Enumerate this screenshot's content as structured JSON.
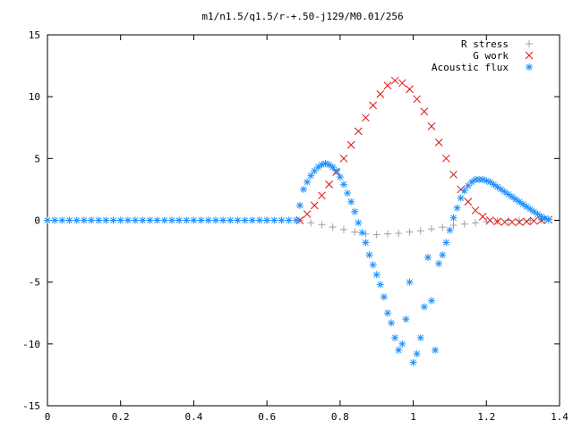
{
  "chart_data": {
    "type": "scatter",
    "title": "m1/n1.5/q1.5/r-+.50-j129/M0.01/256",
    "xlabel": "",
    "ylabel": "",
    "xlim": [
      0,
      1.4
    ],
    "ylim": [
      -15,
      15
    ],
    "x_ticks": [
      "0",
      "0.2",
      "0.4",
      "0.6",
      "0.8",
      "1",
      "1.2",
      "1.4"
    ],
    "y_ticks": [
      "15",
      "10",
      "5",
      "0",
      "-5",
      "-10",
      "-15"
    ],
    "legend_position": "top-right",
    "grid": false,
    "series": [
      {
        "name": "R stress",
        "marker": "plus",
        "color": "#a0a0a0",
        "points": [
          [
            0.69,
            0.0
          ],
          [
            0.72,
            -0.2
          ],
          [
            0.75,
            -0.35
          ],
          [
            0.78,
            -0.55
          ],
          [
            0.81,
            -0.75
          ],
          [
            0.84,
            -0.95
          ],
          [
            0.87,
            -1.1
          ],
          [
            0.9,
            -1.15
          ],
          [
            0.93,
            -1.1
          ],
          [
            0.96,
            -1.05
          ],
          [
            0.99,
            -0.95
          ],
          [
            1.02,
            -0.85
          ],
          [
            1.05,
            -0.7
          ],
          [
            1.08,
            -0.55
          ],
          [
            1.11,
            -0.4
          ],
          [
            1.14,
            -0.3
          ],
          [
            1.17,
            -0.2
          ],
          [
            1.2,
            -0.1
          ],
          [
            1.23,
            -0.05
          ],
          [
            1.26,
            0.0
          ],
          [
            1.29,
            0.0
          ],
          [
            1.32,
            0.0
          ],
          [
            1.35,
            0.05
          ],
          [
            1.37,
            0.1
          ]
        ]
      },
      {
        "name": "G work",
        "marker": "cross",
        "color": "#e01010",
        "points": [
          [
            0.69,
            0.0
          ],
          [
            0.71,
            0.5
          ],
          [
            0.73,
            1.2
          ],
          [
            0.75,
            2.0
          ],
          [
            0.77,
            2.9
          ],
          [
            0.79,
            3.9
          ],
          [
            0.81,
            5.0
          ],
          [
            0.83,
            6.1
          ],
          [
            0.85,
            7.2
          ],
          [
            0.87,
            8.3
          ],
          [
            0.89,
            9.3
          ],
          [
            0.91,
            10.2
          ],
          [
            0.93,
            10.9
          ],
          [
            0.95,
            11.3
          ],
          [
            0.97,
            11.1
          ],
          [
            0.99,
            10.6
          ],
          [
            1.01,
            9.8
          ],
          [
            1.03,
            8.8
          ],
          [
            1.05,
            7.6
          ],
          [
            1.07,
            6.3
          ],
          [
            1.09,
            5.0
          ],
          [
            1.11,
            3.7
          ],
          [
            1.13,
            2.5
          ],
          [
            1.15,
            1.5
          ],
          [
            1.17,
            0.8
          ],
          [
            1.19,
            0.3
          ],
          [
            1.21,
            0.0
          ],
          [
            1.23,
            -0.1
          ],
          [
            1.25,
            -0.15
          ],
          [
            1.27,
            -0.15
          ],
          [
            1.29,
            -0.15
          ],
          [
            1.31,
            -0.1
          ],
          [
            1.33,
            -0.05
          ],
          [
            1.35,
            0.0
          ],
          [
            1.37,
            0.05
          ]
        ]
      },
      {
        "name": "Acoustic flux",
        "marker": "star",
        "color": "#1e90ff",
        "points": [
          [
            0.0,
            0
          ],
          [
            0.02,
            0
          ],
          [
            0.04,
            0
          ],
          [
            0.06,
            0
          ],
          [
            0.08,
            0
          ],
          [
            0.1,
            0
          ],
          [
            0.12,
            0
          ],
          [
            0.14,
            0
          ],
          [
            0.16,
            0
          ],
          [
            0.18,
            0
          ],
          [
            0.2,
            0
          ],
          [
            0.22,
            0
          ],
          [
            0.24,
            0
          ],
          [
            0.26,
            0
          ],
          [
            0.28,
            0
          ],
          [
            0.3,
            0
          ],
          [
            0.32,
            0
          ],
          [
            0.34,
            0
          ],
          [
            0.36,
            0
          ],
          [
            0.38,
            0
          ],
          [
            0.4,
            0
          ],
          [
            0.42,
            0
          ],
          [
            0.44,
            0
          ],
          [
            0.46,
            0
          ],
          [
            0.48,
            0
          ],
          [
            0.5,
            0
          ],
          [
            0.52,
            0
          ],
          [
            0.54,
            0
          ],
          [
            0.56,
            0
          ],
          [
            0.58,
            0
          ],
          [
            0.6,
            0
          ],
          [
            0.62,
            0
          ],
          [
            0.64,
            0
          ],
          [
            0.66,
            0
          ],
          [
            0.68,
            0
          ],
          [
            0.69,
            1.2
          ],
          [
            0.7,
            2.5
          ],
          [
            0.71,
            3.1
          ],
          [
            0.72,
            3.6
          ],
          [
            0.73,
            4.0
          ],
          [
            0.74,
            4.3
          ],
          [
            0.75,
            4.5
          ],
          [
            0.76,
            4.6
          ],
          [
            0.77,
            4.5
          ],
          [
            0.78,
            4.3
          ],
          [
            0.79,
            4.0
          ],
          [
            0.8,
            3.5
          ],
          [
            0.81,
            2.9
          ],
          [
            0.82,
            2.2
          ],
          [
            0.83,
            1.5
          ],
          [
            0.84,
            0.7
          ],
          [
            0.85,
            -0.2
          ],
          [
            0.86,
            -1.0
          ],
          [
            0.87,
            -1.8
          ],
          [
            0.88,
            -2.8
          ],
          [
            0.89,
            -3.6
          ],
          [
            0.9,
            -4.4
          ],
          [
            0.91,
            -5.2
          ],
          [
            0.92,
            -6.2
          ],
          [
            0.93,
            -7.5
          ],
          [
            0.94,
            -8.3
          ],
          [
            0.95,
            -9.5
          ],
          [
            0.96,
            -10.5
          ],
          [
            0.97,
            -10.0
          ],
          [
            0.98,
            -8.0
          ],
          [
            0.99,
            -5.0
          ],
          [
            1.0,
            -11.5
          ],
          [
            1.01,
            -10.8
          ],
          [
            1.02,
            -9.5
          ],
          [
            1.03,
            -7.0
          ],
          [
            1.04,
            -3.0
          ],
          [
            1.05,
            -6.5
          ],
          [
            1.06,
            -10.5
          ],
          [
            1.07,
            -3.5
          ],
          [
            1.08,
            -2.8
          ],
          [
            1.09,
            -1.8
          ],
          [
            1.1,
            -0.8
          ],
          [
            1.11,
            0.2
          ],
          [
            1.12,
            1.0
          ],
          [
            1.13,
            1.8
          ],
          [
            1.14,
            2.4
          ],
          [
            1.15,
            2.8
          ],
          [
            1.16,
            3.1
          ],
          [
            1.17,
            3.3
          ],
          [
            1.18,
            3.3
          ],
          [
            1.19,
            3.3
          ],
          [
            1.2,
            3.2
          ],
          [
            1.21,
            3.1
          ],
          [
            1.22,
            2.9
          ],
          [
            1.23,
            2.7
          ],
          [
            1.24,
            2.5
          ],
          [
            1.25,
            2.3
          ],
          [
            1.26,
            2.1
          ],
          [
            1.27,
            1.9
          ],
          [
            1.28,
            1.7
          ],
          [
            1.29,
            1.5
          ],
          [
            1.3,
            1.3
          ],
          [
            1.31,
            1.1
          ],
          [
            1.32,
            0.9
          ],
          [
            1.33,
            0.7
          ],
          [
            1.34,
            0.5
          ],
          [
            1.35,
            0.3
          ],
          [
            1.36,
            0.15
          ],
          [
            1.37,
            0.05
          ]
        ]
      }
    ]
  }
}
